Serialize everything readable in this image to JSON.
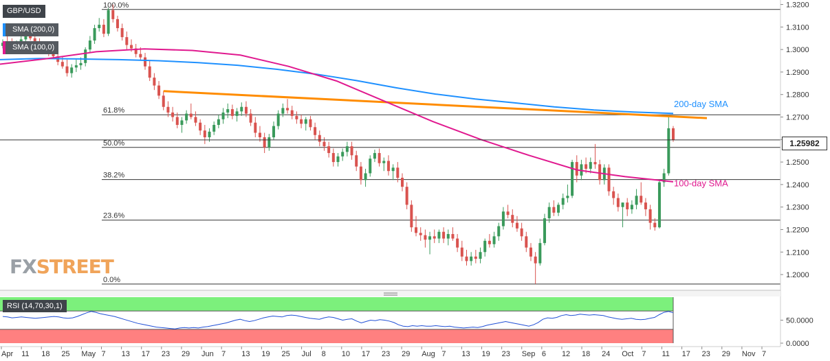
{
  "chart_data": {
    "type": "candlestick",
    "symbol": "GBP/USD",
    "last_price": "1.25982",
    "y_ticks": [
      1.32,
      1.31,
      1.3,
      1.29,
      1.28,
      1.27,
      1.26,
      1.25,
      1.24,
      1.23,
      1.22,
      1.21,
      1.2
    ],
    "y_tick_labels": [
      "1.3200",
      "1.3100",
      "1.3000",
      "1.2900",
      "1.2800",
      "1.2700",
      "1.2600",
      "1.2500",
      "1.2400",
      "1.2300",
      "1.2200",
      "1.2100",
      "1.2000"
    ],
    "ylim": [
      1.193,
      1.322
    ],
    "x_labels": [
      "Apr",
      "11",
      "18",
      "25",
      "May",
      "7",
      "13",
      "17",
      "23",
      "29",
      "Jun",
      "7",
      "13",
      "19",
      "25",
      "Jul",
      "8",
      "10",
      "17",
      "23",
      "29",
      "Aug",
      "7",
      "13",
      "19",
      "23",
      "Sep",
      "6",
      "12",
      "18",
      "24",
      "Oct",
      "7",
      "11",
      "17",
      "23",
      "29",
      "Nov",
      "7"
    ],
    "fibonacci": [
      {
        "label": "100.0%",
        "value": 1.3178
      },
      {
        "label": "61.8%",
        "value": 1.271
      },
      {
        "label": "50.0%",
        "value": 1.2565
      },
      {
        "label": "38.2%",
        "value": 1.2422
      },
      {
        "label": "23.6%",
        "value": 1.2242
      },
      {
        "label": "0.0%",
        "value": 1.1958
      }
    ],
    "annotations": [
      {
        "text": "200-day SMA",
        "color": "#1e90ff"
      },
      {
        "text": "100-day SMA",
        "color": "#e0198f"
      }
    ],
    "series": [
      {
        "name": "SMA (200,0)",
        "color": "#1e90ff",
        "values": [
          1.2955,
          1.296,
          1.2958,
          1.2955,
          1.295,
          1.2942,
          1.293,
          1.2912,
          1.289,
          1.2862,
          1.283,
          1.2802,
          1.278,
          1.2763,
          1.2745,
          1.2731,
          1.2722,
          1.2716
        ]
      },
      {
        "name": "SMA (100,0)",
        "color": "#e0198f",
        "values": [
          1.2935,
          1.296,
          1.299,
          1.3003,
          1.2996,
          1.2975,
          1.2925,
          1.286,
          1.277,
          1.268,
          1.26,
          1.253,
          1.2465,
          1.2435,
          1.2412
        ]
      }
    ],
    "trendline": {
      "color": "#ff8c00",
      "from": 1.2815,
      "to": 1.2695
    },
    "candles": [
      [
        1.3016,
        1.3045,
        1.3005,
        1.303
      ],
      [
        1.303,
        1.306,
        1.301,
        1.302
      ],
      [
        1.302,
        1.305,
        1.3,
        1.301
      ],
      [
        1.301,
        1.304,
        1.299,
        1.3025
      ],
      [
        1.3025,
        1.306,
        1.301,
        1.3045
      ],
      [
        1.3045,
        1.308,
        1.303,
        1.306
      ],
      [
        1.306,
        1.309,
        1.304,
        1.305
      ],
      [
        1.305,
        1.307,
        1.302,
        1.303
      ],
      [
        1.303,
        1.305,
        1.3,
        1.301
      ],
      [
        1.301,
        1.303,
        1.298,
        1.3
      ],
      [
        1.3,
        1.302,
        1.297,
        1.2995
      ],
      [
        1.2995,
        1.301,
        1.296,
        1.297
      ],
      [
        1.297,
        1.2985,
        1.293,
        1.2945
      ],
      [
        1.2945,
        1.297,
        1.2915,
        1.2925
      ],
      [
        1.2925,
        1.2955,
        1.288,
        1.2895
      ],
      [
        1.2895,
        1.2935,
        1.2875,
        1.292
      ],
      [
        1.292,
        1.2955,
        1.29,
        1.293
      ],
      [
        1.293,
        1.2965,
        1.291,
        1.294
      ],
      [
        1.294,
        1.301,
        1.2925,
        1.3
      ],
      [
        1.3,
        1.306,
        1.2985,
        1.304
      ],
      [
        1.304,
        1.311,
        1.3025,
        1.3095
      ],
      [
        1.3095,
        1.314,
        1.308,
        1.311
      ],
      [
        1.311,
        1.3135,
        1.3055,
        1.307
      ],
      [
        1.307,
        1.3185,
        1.306,
        1.3175
      ],
      [
        1.3175,
        1.32,
        1.312,
        1.3135
      ],
      [
        1.3135,
        1.315,
        1.308,
        1.3095
      ],
      [
        1.3095,
        1.3115,
        1.304,
        1.3055
      ],
      [
        1.3055,
        1.308,
        1.3,
        1.302
      ],
      [
        1.302,
        1.3045,
        1.299,
        1.3005
      ],
      [
        1.3005,
        1.3025,
        1.2965,
        1.298
      ],
      [
        1.298,
        1.301,
        1.295,
        1.2965
      ],
      [
        1.2965,
        1.2985,
        1.291,
        1.2925
      ],
      [
        1.2925,
        1.295,
        1.286,
        1.2875
      ],
      [
        1.2875,
        1.2895,
        1.282,
        1.284
      ],
      [
        1.284,
        1.286,
        1.278,
        1.2795
      ],
      [
        1.2795,
        1.2815,
        1.273,
        1.2745
      ],
      [
        1.2745,
        1.277,
        1.27,
        1.272
      ],
      [
        1.272,
        1.2745,
        1.268,
        1.27
      ],
      [
        1.27,
        1.272,
        1.265,
        1.2665
      ],
      [
        1.2665,
        1.27,
        1.263,
        1.2685
      ],
      [
        1.2685,
        1.273,
        1.267,
        1.2715
      ],
      [
        1.2715,
        1.276,
        1.269,
        1.27
      ],
      [
        1.27,
        1.2725,
        1.266,
        1.2675
      ],
      [
        1.2675,
        1.269,
        1.262,
        1.264
      ],
      [
        1.264,
        1.2665,
        1.258,
        1.261
      ],
      [
        1.261,
        1.265,
        1.259,
        1.2635
      ],
      [
        1.2635,
        1.268,
        1.262,
        1.2665
      ],
      [
        1.2665,
        1.271,
        1.265,
        1.269
      ],
      [
        1.269,
        1.274,
        1.267,
        1.272
      ],
      [
        1.272,
        1.276,
        1.2695,
        1.2735
      ],
      [
        1.2735,
        1.2755,
        1.269,
        1.2705
      ],
      [
        1.2705,
        1.274,
        1.268,
        1.2725
      ],
      [
        1.2725,
        1.2765,
        1.2705,
        1.2745
      ],
      [
        1.2745,
        1.277,
        1.27,
        1.2715
      ],
      [
        1.2715,
        1.2735,
        1.266,
        1.2675
      ],
      [
        1.2675,
        1.27,
        1.261,
        1.263
      ],
      [
        1.263,
        1.266,
        1.259,
        1.261
      ],
      [
        1.261,
        1.263,
        1.254,
        1.2565
      ],
      [
        1.2565,
        1.2625,
        1.255,
        1.261
      ],
      [
        1.261,
        1.268,
        1.26,
        1.266
      ],
      [
        1.266,
        1.273,
        1.2645,
        1.2715
      ],
      [
        1.2715,
        1.276,
        1.27,
        1.274
      ],
      [
        1.274,
        1.278,
        1.2715,
        1.273
      ],
      [
        1.273,
        1.275,
        1.269,
        1.2705
      ],
      [
        1.2705,
        1.2725,
        1.267,
        1.269
      ],
      [
        1.269,
        1.271,
        1.265,
        1.267
      ],
      [
        1.267,
        1.27,
        1.264,
        1.269
      ],
      [
        1.269,
        1.2705,
        1.264,
        1.2655
      ],
      [
        1.2655,
        1.2675,
        1.26,
        1.262
      ],
      [
        1.262,
        1.264,
        1.257,
        1.259
      ],
      [
        1.259,
        1.261,
        1.255,
        1.257
      ],
      [
        1.257,
        1.259,
        1.252,
        1.254
      ],
      [
        1.254,
        1.256,
        1.248,
        1.25
      ],
      [
        1.25,
        1.254,
        1.248,
        1.2525
      ],
      [
        1.2525,
        1.256,
        1.2505,
        1.2545
      ],
      [
        1.2545,
        1.259,
        1.2525,
        1.257
      ],
      [
        1.257,
        1.259,
        1.251,
        1.253
      ],
      [
        1.253,
        1.255,
        1.246,
        1.248
      ],
      [
        1.248,
        1.25,
        1.24,
        1.242
      ],
      [
        1.242,
        1.247,
        1.239,
        1.245
      ],
      [
        1.245,
        1.253,
        1.2435,
        1.2515
      ],
      [
        1.2515,
        1.2555,
        1.25,
        1.254
      ],
      [
        1.254,
        1.256,
        1.248,
        1.2495
      ],
      [
        1.2495,
        1.252,
        1.246,
        1.2505
      ],
      [
        1.2505,
        1.253,
        1.244,
        1.246
      ],
      [
        1.246,
        1.249,
        1.242,
        1.2475
      ],
      [
        1.2475,
        1.25,
        1.241,
        1.243
      ],
      [
        1.243,
        1.245,
        1.237,
        1.239
      ],
      [
        1.239,
        1.241,
        1.229,
        1.231
      ],
      [
        1.231,
        1.233,
        1.219,
        1.221
      ],
      [
        1.221,
        1.226,
        1.217,
        1.2185
      ],
      [
        1.2185,
        1.221,
        1.215,
        1.2175
      ],
      [
        1.2175,
        1.22,
        1.212,
        1.2155
      ],
      [
        1.2155,
        1.219,
        1.209,
        1.217
      ],
      [
        1.217,
        1.22,
        1.214,
        1.216
      ],
      [
        1.216,
        1.22,
        1.214,
        1.219
      ],
      [
        1.219,
        1.221,
        1.214,
        1.216
      ],
      [
        1.216,
        1.22,
        1.213,
        1.218
      ],
      [
        1.218,
        1.221,
        1.215,
        1.216
      ],
      [
        1.216,
        1.218,
        1.21,
        1.212
      ],
      [
        1.212,
        1.215,
        1.206,
        1.208
      ],
      [
        1.208,
        1.211,
        1.204,
        1.206
      ],
      [
        1.206,
        1.21,
        1.204,
        1.208
      ],
      [
        1.208,
        1.211,
        1.205,
        1.207
      ],
      [
        1.207,
        1.212,
        1.205,
        1.21
      ],
      [
        1.21,
        1.216,
        1.208,
        1.215
      ],
      [
        1.215,
        1.218,
        1.212,
        1.2135
      ],
      [
        1.2135,
        1.219,
        1.212,
        1.217
      ],
      [
        1.217,
        1.223,
        1.215,
        1.2215
      ],
      [
        1.2215,
        1.23,
        1.22,
        1.228
      ],
      [
        1.228,
        1.231,
        1.225,
        1.2265
      ],
      [
        1.2265,
        1.229,
        1.221,
        1.223
      ],
      [
        1.223,
        1.226,
        1.219,
        1.2205
      ],
      [
        1.2205,
        1.223,
        1.215,
        1.217
      ],
      [
        1.217,
        1.219,
        1.21,
        1.212
      ],
      [
        1.212,
        1.214,
        1.206,
        1.208
      ],
      [
        1.208,
        1.21,
        1.1958,
        1.205
      ],
      [
        1.205,
        1.216,
        1.204,
        1.214
      ],
      [
        1.214,
        1.227,
        1.213,
        1.225
      ],
      [
        1.225,
        1.232,
        1.223,
        1.23
      ],
      [
        1.23,
        1.233,
        1.226,
        1.2275
      ],
      [
        1.2275,
        1.232,
        1.226,
        1.231
      ],
      [
        1.231,
        1.236,
        1.229,
        1.234
      ],
      [
        1.234,
        1.24,
        1.232,
        1.235
      ],
      [
        1.235,
        1.251,
        1.234,
        1.25
      ],
      [
        1.25,
        1.253,
        1.241,
        1.244
      ],
      [
        1.244,
        1.251,
        1.242,
        1.249
      ],
      [
        1.249,
        1.252,
        1.245,
        1.247
      ],
      [
        1.247,
        1.252,
        1.245,
        1.25
      ],
      [
        1.25,
        1.258,
        1.247,
        1.249
      ],
      [
        1.249,
        1.251,
        1.24,
        1.242
      ],
      [
        1.242,
        1.249,
        1.24,
        1.2475
      ],
      [
        1.2475,
        1.249,
        1.235,
        1.237
      ],
      [
        1.237,
        1.239,
        1.231,
        1.234
      ],
      [
        1.234,
        1.236,
        1.228,
        1.23
      ],
      [
        1.23,
        1.232,
        1.221,
        1.232
      ],
      [
        1.232,
        1.234,
        1.226,
        1.229
      ],
      [
        1.229,
        1.233,
        1.227,
        1.231
      ],
      [
        1.231,
        1.238,
        1.229,
        1.235
      ],
      [
        1.235,
        1.241,
        1.231,
        1.232
      ],
      [
        1.232,
        1.234,
        1.226,
        1.229
      ],
      [
        1.229,
        1.231,
        1.22,
        1.223
      ],
      [
        1.223,
        1.225,
        1.2195,
        1.221
      ],
      [
        1.221,
        1.242,
        1.2205,
        1.241
      ],
      [
        1.241,
        1.247,
        1.239,
        1.245
      ],
      [
        1.245,
        1.27,
        1.244,
        1.265
      ],
      [
        1.265,
        1.266,
        1.259,
        1.2598
      ]
    ],
    "rsi": {
      "label": "RSI (14,70,30,1)",
      "overbought": 70,
      "oversold": 30,
      "y_ticks": [
        "50.0000",
        "0.0000"
      ],
      "values": [
        58,
        57,
        55,
        56,
        57,
        56,
        55,
        54,
        55,
        56,
        57,
        58,
        57,
        55,
        54,
        55,
        58,
        62,
        66,
        69,
        67,
        64,
        62,
        60,
        58,
        55,
        52,
        49,
        46,
        43,
        41,
        39,
        37,
        35,
        34,
        33,
        32,
        31,
        33,
        34,
        33,
        34,
        33,
        35,
        36,
        38,
        40,
        42,
        44,
        47,
        50,
        52,
        49,
        47,
        49,
        52,
        55,
        57,
        59,
        58,
        57,
        60,
        61,
        60,
        58,
        56,
        54,
        53,
        52,
        55,
        57,
        56,
        53,
        50,
        52,
        53,
        48,
        44,
        47,
        50,
        49,
        51,
        50,
        48,
        45,
        40,
        37,
        36,
        38,
        37,
        38,
        37,
        37,
        38,
        37,
        36,
        37,
        35,
        34,
        33,
        34,
        35,
        34,
        36,
        39,
        41,
        43,
        45,
        47,
        45,
        43,
        41,
        39,
        37,
        40,
        45,
        52,
        55,
        54,
        56,
        60,
        62,
        60,
        61,
        63,
        62,
        61,
        62,
        61,
        60,
        57,
        55,
        53,
        52,
        53,
        54,
        52,
        51,
        52,
        54,
        56,
        62,
        67,
        69,
        66
      ]
    }
  }
}
